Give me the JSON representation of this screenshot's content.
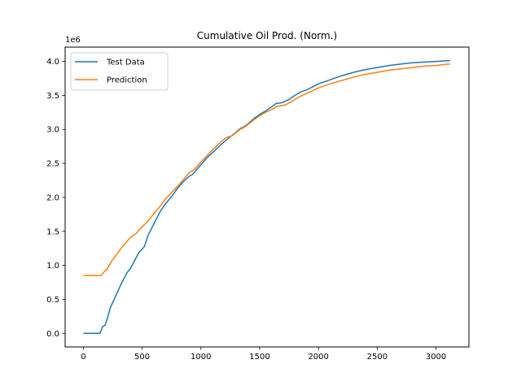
{
  "chart_data": {
    "type": "line",
    "title": "Cumulative Oil Prod. (Norm.)",
    "xlabel": "",
    "ylabel": "",
    "y_offset_label": "1e6",
    "xlim": [
      -155,
      3280
    ],
    "ylim": [
      -200000,
      4210000
    ],
    "xticks": [
      0,
      500,
      1000,
      1500,
      2000,
      2500,
      3000
    ],
    "xtick_labels": [
      "0",
      "500",
      "1000",
      "1500",
      "2000",
      "2500",
      "3000"
    ],
    "yticks": [
      0,
      500000,
      1000000,
      1500000,
      2000000,
      2500000,
      3000000,
      3500000,
      4000000
    ],
    "ytick_labels": [
      "0.0",
      "0.5",
      "1.0",
      "1.5",
      "2.0",
      "2.5",
      "3.0",
      "3.5",
      "4.0"
    ],
    "grid": false,
    "legend_position": "upper-left",
    "series": [
      {
        "name": "Test Data",
        "color": "#1f77b4",
        "x": [
          0,
          50,
          100,
          140,
          165,
          185,
          200,
          230,
          270,
          320,
          370,
          400,
          430,
          470,
          520,
          550,
          600,
          650,
          700,
          750,
          800,
          850,
          900,
          930,
          950,
          1000,
          1050,
          1100,
          1150,
          1200,
          1250,
          1300,
          1340,
          1360,
          1400,
          1450,
          1500,
          1550,
          1600,
          1640,
          1680,
          1700,
          1750,
          1800,
          1850,
          1900,
          2000,
          2100,
          2200,
          2300,
          2400,
          2500,
          2600,
          2700,
          2800,
          2900,
          3000,
          3100,
          3120
        ],
        "y": [
          0,
          0,
          0,
          0,
          100000,
          120000,
          200000,
          380000,
          530000,
          720000,
          890000,
          950000,
          1050000,
          1180000,
          1280000,
          1440000,
          1610000,
          1780000,
          1910000,
          2010000,
          2130000,
          2230000,
          2310000,
          2340000,
          2380000,
          2480000,
          2580000,
          2660000,
          2740000,
          2820000,
          2890000,
          2960000,
          3020000,
          3030000,
          3080000,
          3160000,
          3220000,
          3270000,
          3330000,
          3380000,
          3390000,
          3400000,
          3440000,
          3500000,
          3550000,
          3580000,
          3670000,
          3730000,
          3790000,
          3840000,
          3880000,
          3910000,
          3940000,
          3960000,
          3980000,
          3990000,
          4000000,
          4010000,
          4010000
        ]
      },
      {
        "name": "Prediction",
        "color": "#ff7f0e",
        "x": [
          0,
          50,
          100,
          150,
          160,
          185,
          200,
          240,
          280,
          320,
          360,
          400,
          450,
          480,
          520,
          550,
          600,
          650,
          700,
          750,
          800,
          850,
          900,
          950,
          1000,
          1050,
          1100,
          1150,
          1200,
          1230,
          1260,
          1300,
          1340,
          1360,
          1400,
          1450,
          1500,
          1550,
          1600,
          1650,
          1690,
          1720,
          1760,
          1800,
          1850,
          1900,
          2000,
          2100,
          2200,
          2300,
          2400,
          2500,
          2600,
          2700,
          2800,
          2900,
          3000,
          3100,
          3120
        ],
        "y": [
          850000,
          850000,
          850000,
          850000,
          870000,
          920000,
          940000,
          1060000,
          1150000,
          1250000,
          1330000,
          1410000,
          1470000,
          1530000,
          1600000,
          1650000,
          1760000,
          1860000,
          1980000,
          2070000,
          2160000,
          2260000,
          2360000,
          2420000,
          2520000,
          2610000,
          2700000,
          2780000,
          2860000,
          2890000,
          2900000,
          2950000,
          3010000,
          3020000,
          3070000,
          3140000,
          3200000,
          3250000,
          3290000,
          3340000,
          3350000,
          3360000,
          3400000,
          3440000,
          3490000,
          3530000,
          3610000,
          3670000,
          3720000,
          3770000,
          3810000,
          3840000,
          3870000,
          3890000,
          3910000,
          3930000,
          3940000,
          3960000,
          3960000
        ]
      }
    ]
  }
}
